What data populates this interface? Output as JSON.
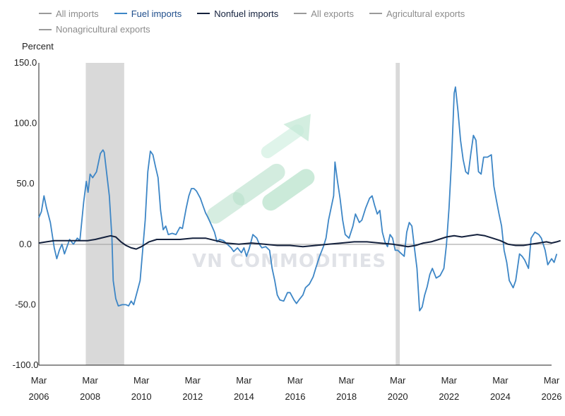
{
  "colors": {
    "all_imports": "#9a9a9a",
    "fuel_imports": "#3d86c6",
    "nonfuel_imports": "#14213d",
    "all_exports": "#9a9a9a",
    "agricultural_exports": "#9a9a9a",
    "nonagricultural_exports": "#9a9a9a",
    "recession": "#d9d9d9",
    "axis": "#222222",
    "zero_line": "#9a9a9a"
  },
  "legend": [
    {
      "key": "all_imports",
      "label": "All imports",
      "text_color": "#8c8c8c"
    },
    {
      "key": "fuel_imports",
      "label": "Fuel imports",
      "text_color": "#1f4e8c"
    },
    {
      "key": "nonfuel_imports",
      "label": "Nonfuel imports",
      "text_color": "#14213d"
    },
    {
      "key": "all_exports",
      "label": "All exports",
      "text_color": "#8c8c8c"
    },
    {
      "key": "agricultural_exports",
      "label": "Agricultural exports",
      "text_color": "#8c8c8c"
    },
    {
      "key": "nonagricultural_exports",
      "label": "Nonagricultural exports",
      "text_color": "#8c8c8c"
    }
  ],
  "watermark": "VN COMMODITIES",
  "chart_data": {
    "type": "line",
    "title": "",
    "ylabel": "Percent",
    "xlabel": "",
    "ylim": [
      -100,
      150
    ],
    "yticks": [
      "-100.0",
      "-50.0",
      "0.0",
      "50.0",
      "100.0",
      "150.0"
    ],
    "xlim": [
      2006.0,
      2026.0
    ],
    "xticks": [
      {
        "month": "Mar",
        "year": "2006",
        "x": 2006.0
      },
      {
        "month": "Mar",
        "year": "2008",
        "x": 2008.0
      },
      {
        "month": "Mar",
        "year": "2010",
        "x": 2010.0
      },
      {
        "month": "Mar",
        "year": "2012",
        "x": 2012.0
      },
      {
        "month": "Mar",
        "year": "2014",
        "x": 2014.0
      },
      {
        "month": "Mar",
        "year": "2016",
        "x": 2016.0
      },
      {
        "month": "Mar",
        "year": "2018",
        "x": 2018.0
      },
      {
        "month": "Mar",
        "year": "2020",
        "x": 2020.0
      },
      {
        "month": "Mar",
        "year": "2022",
        "x": 2022.0
      },
      {
        "month": "Mar",
        "year": "2024",
        "x": 2024.0
      },
      {
        "month": "Mar",
        "year": "2026",
        "x": 2026.0
      }
    ],
    "recession_bands": [
      [
        2007.83,
        2009.33
      ],
      [
        2019.92,
        2020.08
      ]
    ],
    "legend_position": "top",
    "series": [
      {
        "name": "Fuel imports",
        "key": "fuel_imports",
        "points": [
          [
            2006.0,
            22
          ],
          [
            2006.1,
            27
          ],
          [
            2006.2,
            40
          ],
          [
            2006.3,
            30
          ],
          [
            2006.45,
            18
          ],
          [
            2006.6,
            -3
          ],
          [
            2006.7,
            -12
          ],
          [
            2006.8,
            -5
          ],
          [
            2006.9,
            0
          ],
          [
            2007.0,
            -8
          ],
          [
            2007.1,
            -2
          ],
          [
            2007.2,
            4
          ],
          [
            2007.35,
            0
          ],
          [
            2007.5,
            5
          ],
          [
            2007.6,
            3
          ],
          [
            2007.75,
            35
          ],
          [
            2007.85,
            52
          ],
          [
            2007.92,
            43
          ],
          [
            2008.0,
            58
          ],
          [
            2008.1,
            55
          ],
          [
            2008.25,
            60
          ],
          [
            2008.4,
            75
          ],
          [
            2008.5,
            78
          ],
          [
            2008.55,
            76
          ],
          [
            2008.65,
            58
          ],
          [
            2008.75,
            40
          ],
          [
            2008.85,
            5
          ],
          [
            2008.9,
            -30
          ],
          [
            2009.0,
            -45
          ],
          [
            2009.1,
            -51
          ],
          [
            2009.25,
            -50
          ],
          [
            2009.4,
            -50
          ],
          [
            2009.5,
            -51
          ],
          [
            2009.6,
            -47
          ],
          [
            2009.7,
            -50
          ],
          [
            2009.85,
            -38
          ],
          [
            2009.95,
            -30
          ],
          [
            2010.05,
            -5
          ],
          [
            2010.15,
            20
          ],
          [
            2010.25,
            60
          ],
          [
            2010.35,
            77
          ],
          [
            2010.45,
            74
          ],
          [
            2010.55,
            64
          ],
          [
            2010.65,
            55
          ],
          [
            2010.75,
            28
          ],
          [
            2010.85,
            12
          ],
          [
            2010.95,
            15
          ],
          [
            2011.05,
            8
          ],
          [
            2011.2,
            9
          ],
          [
            2011.35,
            8
          ],
          [
            2011.5,
            14
          ],
          [
            2011.6,
            13
          ],
          [
            2011.75,
            30
          ],
          [
            2011.85,
            40
          ],
          [
            2011.95,
            46
          ],
          [
            2012.05,
            46
          ],
          [
            2012.15,
            44
          ],
          [
            2012.3,
            38
          ],
          [
            2012.4,
            32
          ],
          [
            2012.5,
            26
          ],
          [
            2012.6,
            22
          ],
          [
            2012.75,
            15
          ],
          [
            2012.85,
            10
          ],
          [
            2012.95,
            2
          ],
          [
            2013.05,
            4
          ],
          [
            2013.2,
            3
          ],
          [
            2013.35,
            0
          ],
          [
            2013.5,
            -3
          ],
          [
            2013.6,
            -6
          ],
          [
            2013.75,
            -3
          ],
          [
            2013.9,
            -7
          ],
          [
            2014.0,
            -3
          ],
          [
            2014.1,
            -10
          ],
          [
            2014.2,
            -4
          ],
          [
            2014.35,
            8
          ],
          [
            2014.5,
            5
          ],
          [
            2014.6,
            0
          ],
          [
            2014.7,
            -3
          ],
          [
            2014.85,
            -2
          ],
          [
            2015.0,
            -5
          ],
          [
            2015.1,
            -20
          ],
          [
            2015.2,
            -30
          ],
          [
            2015.3,
            -42
          ],
          [
            2015.4,
            -46
          ],
          [
            2015.55,
            -47
          ],
          [
            2015.7,
            -40
          ],
          [
            2015.8,
            -40
          ],
          [
            2015.95,
            -46
          ],
          [
            2016.05,
            -49
          ],
          [
            2016.15,
            -46
          ],
          [
            2016.3,
            -42
          ],
          [
            2016.4,
            -36
          ],
          [
            2016.55,
            -33
          ],
          [
            2016.7,
            -27
          ],
          [
            2016.8,
            -20
          ],
          [
            2016.95,
            -10
          ],
          [
            2017.1,
            -2
          ],
          [
            2017.2,
            5
          ],
          [
            2017.3,
            20
          ],
          [
            2017.4,
            30
          ],
          [
            2017.5,
            40
          ],
          [
            2017.55,
            68
          ],
          [
            2017.65,
            52
          ],
          [
            2017.75,
            38
          ],
          [
            2017.85,
            20
          ],
          [
            2017.95,
            8
          ],
          [
            2018.0,
            7
          ],
          [
            2018.1,
            5
          ],
          [
            2018.25,
            15
          ],
          [
            2018.35,
            25
          ],
          [
            2018.5,
            18
          ],
          [
            2018.6,
            20
          ],
          [
            2018.75,
            30
          ],
          [
            2018.9,
            38
          ],
          [
            2019.0,
            40
          ],
          [
            2019.1,
            32
          ],
          [
            2019.2,
            25
          ],
          [
            2019.3,
            28
          ],
          [
            2019.4,
            10
          ],
          [
            2019.5,
            2
          ],
          [
            2019.6,
            -2
          ],
          [
            2019.7,
            8
          ],
          [
            2019.8,
            5
          ],
          [
            2019.9,
            -5
          ],
          [
            2020.0,
            -5
          ],
          [
            2020.1,
            -7
          ],
          [
            2020.25,
            -10
          ],
          [
            2020.35,
            10
          ],
          [
            2020.45,
            18
          ],
          [
            2020.55,
            15
          ],
          [
            2020.65,
            -3
          ],
          [
            2020.75,
            -20
          ],
          [
            2020.85,
            -55
          ],
          [
            2020.95,
            -52
          ],
          [
            2021.05,
            -42
          ],
          [
            2021.15,
            -35
          ],
          [
            2021.25,
            -25
          ],
          [
            2021.35,
            -20
          ],
          [
            2021.5,
            -28
          ],
          [
            2021.65,
            -26
          ],
          [
            2021.8,
            -20
          ],
          [
            2021.9,
            0
          ],
          [
            2022.0,
            30
          ],
          [
            2022.1,
            70
          ],
          [
            2022.2,
            125
          ],
          [
            2022.25,
            130
          ],
          [
            2022.35,
            110
          ],
          [
            2022.45,
            86
          ],
          [
            2022.55,
            70
          ],
          [
            2022.65,
            60
          ],
          [
            2022.75,
            58
          ],
          [
            2022.85,
            75
          ],
          [
            2022.95,
            90
          ],
          [
            2023.05,
            86
          ],
          [
            2023.15,
            60
          ],
          [
            2023.25,
            58
          ],
          [
            2023.35,
            72
          ],
          [
            2023.5,
            72
          ],
          [
            2023.65,
            74
          ],
          [
            2023.75,
            48
          ],
          [
            2023.85,
            36
          ],
          [
            2023.95,
            25
          ],
          [
            2024.05,
            15
          ],
          [
            2024.15,
            -5
          ],
          [
            2024.25,
            -15
          ],
          [
            2024.35,
            -30
          ],
          [
            2024.5,
            -36
          ],
          [
            2024.6,
            -30
          ],
          [
            2024.75,
            -8
          ],
          [
            2024.85,
            -10
          ],
          [
            2024.95,
            -13
          ],
          [
            2025.1,
            -20
          ],
          [
            2025.2,
            5
          ],
          [
            2025.35,
            10
          ],
          [
            2025.5,
            8
          ],
          [
            2025.6,
            5
          ],
          [
            2025.75,
            -5
          ],
          [
            2025.85,
            -17
          ],
          [
            2026.0,
            -12
          ],
          [
            2026.1,
            -15
          ],
          [
            2026.2,
            -8
          ]
        ]
      },
      {
        "name": "Nonfuel imports",
        "key": "nonfuel_imports",
        "points": [
          [
            2006.0,
            1
          ],
          [
            2006.3,
            2
          ],
          [
            2006.6,
            3
          ],
          [
            2007.0,
            3
          ],
          [
            2007.5,
            3
          ],
          [
            2007.9,
            3
          ],
          [
            2008.2,
            4
          ],
          [
            2008.6,
            6
          ],
          [
            2008.8,
            7
          ],
          [
            2009.0,
            6
          ],
          [
            2009.2,
            2
          ],
          [
            2009.4,
            -1
          ],
          [
            2009.6,
            -3
          ],
          [
            2009.8,
            -4
          ],
          [
            2010.0,
            -2
          ],
          [
            2010.3,
            2
          ],
          [
            2010.6,
            4
          ],
          [
            2011.0,
            4
          ],
          [
            2011.5,
            4
          ],
          [
            2012.0,
            5
          ],
          [
            2012.5,
            5
          ],
          [
            2012.9,
            3
          ],
          [
            2013.3,
            1
          ],
          [
            2013.8,
            0
          ],
          [
            2014.3,
            1
          ],
          [
            2014.8,
            0
          ],
          [
            2015.3,
            -1
          ],
          [
            2015.8,
            -1
          ],
          [
            2016.3,
            -2
          ],
          [
            2016.8,
            -1
          ],
          [
            2017.3,
            0
          ],
          [
            2017.8,
            1
          ],
          [
            2018.3,
            2
          ],
          [
            2018.8,
            2
          ],
          [
            2019.3,
            1
          ],
          [
            2019.8,
            0
          ],
          [
            2020.1,
            -1
          ],
          [
            2020.4,
            -2
          ],
          [
            2020.7,
            -1
          ],
          [
            2021.0,
            1
          ],
          [
            2021.3,
            2
          ],
          [
            2021.6,
            4
          ],
          [
            2021.9,
            6
          ],
          [
            2022.2,
            7
          ],
          [
            2022.5,
            6
          ],
          [
            2022.8,
            7
          ],
          [
            2023.1,
            8
          ],
          [
            2023.4,
            7
          ],
          [
            2023.7,
            5
          ],
          [
            2024.0,
            3
          ],
          [
            2024.3,
            0
          ],
          [
            2024.6,
            -1
          ],
          [
            2024.9,
            -1
          ],
          [
            2025.2,
            0
          ],
          [
            2025.5,
            1
          ],
          [
            2025.8,
            2
          ],
          [
            2026.0,
            1
          ],
          [
            2026.2,
            2
          ],
          [
            2026.35,
            3
          ]
        ]
      }
    ]
  }
}
